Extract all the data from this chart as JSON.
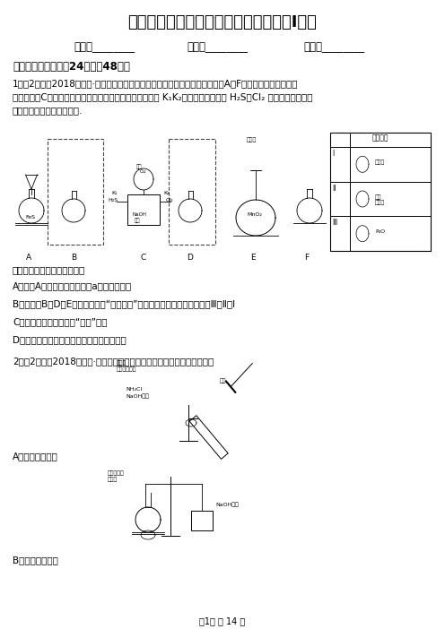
{
  "title": "四川省高一上学期化学期中考试试卷（I）卷",
  "fields": [
    "姓名：________",
    "班级：________",
    "成绩：________"
  ],
  "section1": "一、单项选择题（入24题；入48分）",
  "q1_header": "1．（2分）（2018高三上·岳阳月考）某学生利用以下装置探究喷泉实验．其中A、F分别为硫化氢和氯气的",
  "q1_line2": "发生装置，C为纯净干燥的氯气与硫化氢反应的装置．打开 K₁K₂，将常温常压下的 H₂S、Cl₂ 控制等体积通入烧",
  "q1_line3": "瓶且最终气体刚好充满烧瓶.",
  "q1_question": "下列说法正确的是：（　　）",
  "q1_optA": "A．装置A中的分液漏斗内液体a可选用稀碐酸",
  "q1_optB": "B．虚线框B、D、E内从右上图的“备选装置”中选择合适装置的编号依次为Ⅲ、Ⅱ、Ⅰ",
  "q1_optC": "C．立即看到烧瓶内产生“喷泉”现象",
  "q1_optD": "D．本实验必须对烧瓶冷敞或热敞来引发喷泉",
  "q2_header": "2．（2分）（2018高三上·黑龙江开学考）无法达到实验目的的是（　　）",
  "q2_optA": "A．检验鐵根离子",
  "q2_optB": "B．制取乙酸乙酯",
  "page_footer": "第1页 共 14 页",
  "bg_color": "#ffffff",
  "text_color": "#000000",
  "font_size_title": 13,
  "font_size_body": 7.5,
  "font_size_small": 6.5
}
